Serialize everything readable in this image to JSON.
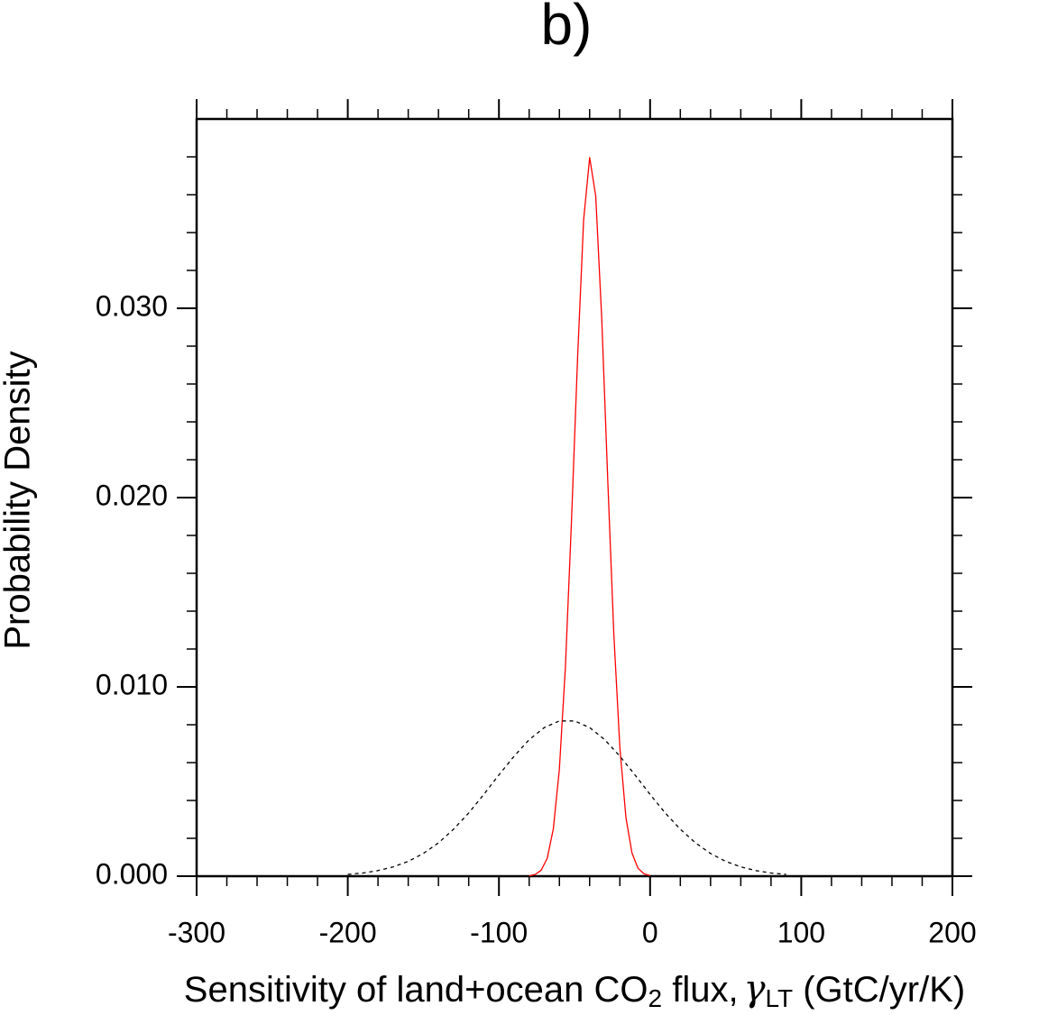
{
  "chart_data": {
    "type": "line",
    "title": "b)",
    "xlabel": [
      "Sensitivity of land+ocean CO",
      "2",
      " flux,",
      "γ",
      "LT",
      " (GtC/yr/K)"
    ],
    "ylabel": "Probability Density",
    "xlim": [
      -300,
      200
    ],
    "ylim": [
      0,
      0.04
    ],
    "xticks": [
      -300,
      -200,
      -100,
      0,
      100,
      200
    ],
    "yticks": [
      {
        "value": 0,
        "label": "0.000"
      },
      {
        "value": 0.01,
        "label": "0.010"
      },
      {
        "value": 0.02,
        "label": "0.020"
      },
      {
        "value": 0.03,
        "label": "0.030"
      }
    ],
    "xminorticks": [
      -280,
      -260,
      -240,
      -220,
      -180,
      -160,
      -140,
      -120,
      -80,
      -60,
      -40,
      -20,
      20,
      40,
      60,
      80,
      120,
      140,
      160,
      180
    ],
    "yminorticks": [
      0.002,
      0.004,
      0.006,
      0.008,
      0.012,
      0.014,
      0.016,
      0.018,
      0.022,
      0.024,
      0.026,
      0.028,
      0.032,
      0.034,
      0.036,
      0.038
    ],
    "series": [
      {
        "color": "#ff0000",
        "dash": false,
        "x": [
          -80,
          -76,
          -72,
          -68,
          -64,
          -60,
          -56,
          -52,
          -48,
          -44,
          -40,
          -36,
          -32,
          -28,
          -24,
          -20,
          -16,
          -12,
          -8,
          -4,
          0
        ],
        "values": [
          2e-05,
          9e-05,
          0.00032,
          0.00095,
          0.0025,
          0.00565,
          0.01105,
          0.01871,
          0.02738,
          0.03467,
          0.03796,
          0.03594,
          0.02944,
          0.02086,
          0.01278,
          0.00678,
          0.0031,
          0.00123,
          0.00042,
          0.000125,
          3e-05
        ]
      },
      {
        "color": "#000000",
        "dash": true,
        "x": [
          -200,
          -190,
          -180,
          -170,
          -160,
          -150,
          -140,
          -130,
          -120,
          -110,
          -100,
          -90,
          -80,
          -70,
          -60,
          -50,
          -40,
          -30,
          -20,
          -10,
          0,
          10,
          20,
          30,
          40,
          50,
          60,
          70,
          80,
          90
        ],
        "values": [
          9.3e-05,
          0.000168,
          0.000293,
          0.00049,
          0.00078,
          0.0012,
          0.00176,
          0.00248,
          0.00334,
          0.00432,
          0.00535,
          0.00634,
          0.00721,
          0.00785,
          0.0082,
          0.0082,
          0.00785,
          0.00721,
          0.00634,
          0.00535,
          0.00432,
          0.00334,
          0.00248,
          0.00176,
          0.0012,
          0.00078,
          0.00049,
          0.000293,
          0.000168,
          9.3e-05
        ]
      }
    ]
  }
}
